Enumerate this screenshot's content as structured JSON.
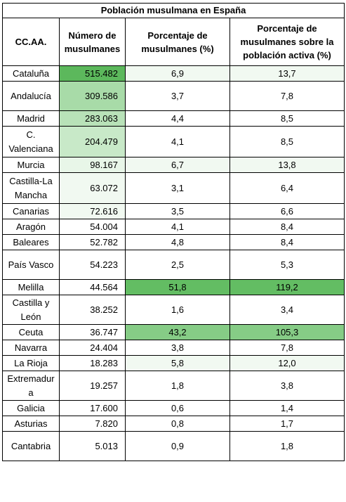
{
  "table": {
    "title": "Población musulmana en España",
    "headers": {
      "ccaa": "CC.AA.",
      "numero": "Número de musulmanes",
      "porcentaje": "Porcentaje de musulmanes (%)",
      "activa": "Porcentaje de musulmanes sobre la población activa (%)"
    },
    "rows": [
      {
        "region": "Cataluña",
        "numero": "515.482",
        "porcentaje": "6,9",
        "activa": "13,7"
      },
      {
        "region": "Andalucía",
        "numero": "309.586",
        "porcentaje": "3,7",
        "activa": "7,8"
      },
      {
        "region": "Madrid",
        "numero": "283.063",
        "porcentaje": "4,4",
        "activa": "8,5"
      },
      {
        "region": "C. Valenciana",
        "numero": "204.479",
        "porcentaje": "4,1",
        "activa": "8,5"
      },
      {
        "region": "Murcia",
        "numero": "98.167",
        "porcentaje": "6,7",
        "activa": "13,8"
      },
      {
        "region": "Castilla-La Mancha",
        "numero": "63.072",
        "porcentaje": "3,1",
        "activa": "6,4"
      },
      {
        "region": "Canarias",
        "numero": "72.616",
        "porcentaje": "3,5",
        "activa": "6,6"
      },
      {
        "region": "Aragón",
        "numero": "54.004",
        "porcentaje": "4,1",
        "activa": "8,4"
      },
      {
        "region": "Baleares",
        "numero": "52.782",
        "porcentaje": "4,8",
        "activa": "8,4"
      },
      {
        "region": "País Vasco",
        "numero": "54.223",
        "porcentaje": "2,5",
        "activa": "5,3"
      },
      {
        "region": "Melilla",
        "numero": "44.564",
        "porcentaje": "51,8",
        "activa": "119,2"
      },
      {
        "region": "Castilla y León",
        "numero": "38.252",
        "porcentaje": "1,6",
        "activa": "3,4"
      },
      {
        "region": "Ceuta",
        "numero": "36.747",
        "porcentaje": "43,2",
        "activa": "105,3"
      },
      {
        "region": "Navarra",
        "numero": "24.404",
        "porcentaje": "3,8",
        "activa": "7,8"
      },
      {
        "region": "La Rioja",
        "numero": "18.283",
        "porcentaje": "5,8",
        "activa": "12,0"
      },
      {
        "region": "Extremadur a",
        "numero": "19.257",
        "porcentaje": "1,8",
        "activa": "3,8"
      },
      {
        "region": "Galicia",
        "numero": "17.600",
        "porcentaje": "0,6",
        "activa": "1,4"
      },
      {
        "region": "Asturias",
        "numero": "7.820",
        "porcentaje": "0,8",
        "activa": "1,7"
      },
      {
        "region": "Cantabria",
        "numero": "5.013",
        "porcentaje": "0,9",
        "activa": "1,8"
      }
    ],
    "colors": {
      "scale_dark": "#5cb85c",
      "scale_light": "#f1f9f1",
      "border": "#000000"
    }
  }
}
